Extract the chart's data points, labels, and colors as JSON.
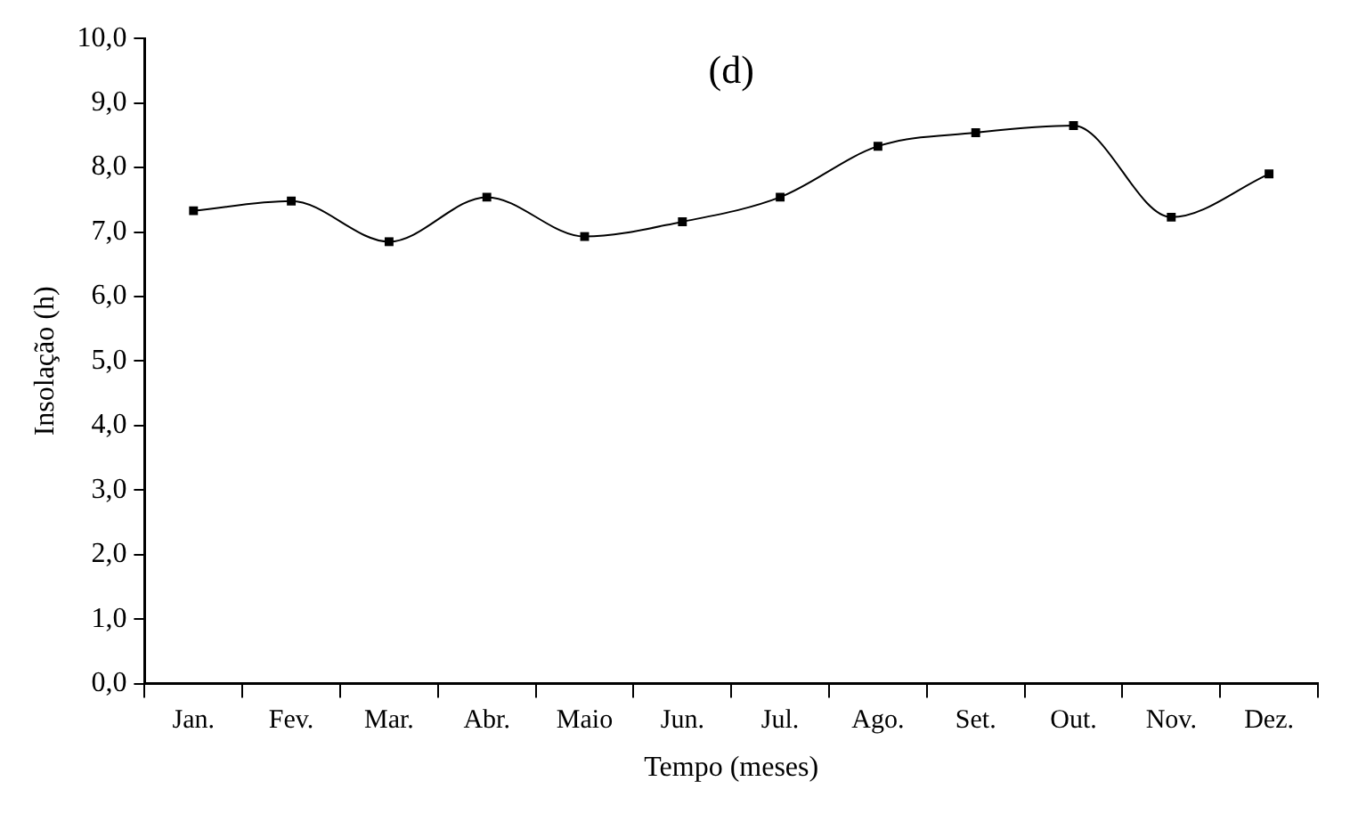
{
  "chart_data": {
    "type": "line",
    "title": "(d)",
    "xlabel": "Tempo (meses)",
    "ylabel": "Insolação (h)",
    "categories": [
      "Jan.",
      "Fev.",
      "Mar.",
      "Abr.",
      "Maio",
      "Jun.",
      "Jul.",
      "Ago.",
      "Set.",
      "Out.",
      "Nov.",
      "Dez."
    ],
    "series": [
      {
        "color": "#000000",
        "values": [
          7.33,
          7.48,
          6.85,
          7.54,
          6.93,
          7.16,
          7.54,
          8.33,
          8.54,
          8.65,
          7.23,
          7.9
        ]
      }
    ],
    "ylim": [
      0,
      10
    ],
    "yticks": [
      {
        "value": 0,
        "label": "0,0"
      },
      {
        "value": 1,
        "label": "1,0"
      },
      {
        "value": 2,
        "label": "2,0"
      },
      {
        "value": 3,
        "label": "3,0"
      },
      {
        "value": 4,
        "label": "4,0"
      },
      {
        "value": 5,
        "label": "5,0"
      },
      {
        "value": 6,
        "label": "6,0"
      },
      {
        "value": 7,
        "label": "7,0"
      },
      {
        "value": 8,
        "label": "8,0"
      },
      {
        "value": 9,
        "label": "9,0"
      },
      {
        "value": 10,
        "label": "10,0"
      }
    ],
    "grid": false,
    "legend": false,
    "marker": "square",
    "line_style": "solid"
  }
}
